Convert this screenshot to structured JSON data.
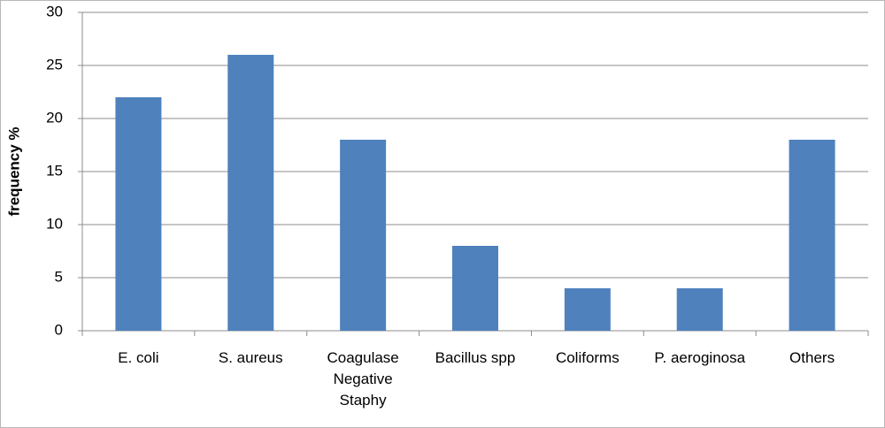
{
  "chart_data": {
    "type": "bar",
    "y_label": "frequency %",
    "categories": [
      "E. coli",
      "S. aureus",
      "Coagulase Negative Staphy",
      "Bacillus spp",
      "Coliforms",
      "P. aeroginosa",
      "Others"
    ],
    "values": [
      22,
      26,
      18,
      8,
      4,
      4,
      18
    ],
    "color": "#4f81bd",
    "ylim": [
      0,
      30
    ],
    "yticks": [
      0,
      5,
      10,
      15,
      20,
      25,
      30
    ],
    "grid": true
  }
}
